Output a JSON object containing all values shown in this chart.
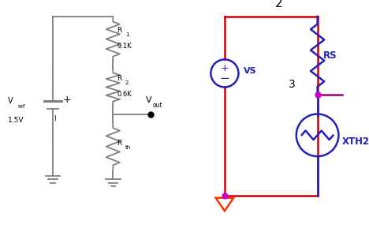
{
  "bg_color": "#ffffff",
  "left_circuit": {
    "wire_color": "#808080",
    "resistor_color": "#808080",
    "ground_color": "#808080",
    "dot_color": "#000000",
    "label_color": "#000000",
    "R1_label1": "R",
    "R1_label2": "1",
    "R1_val": "9.1K",
    "R2_label1": "R",
    "R2_label2": "2",
    "R2_val": "0.6K",
    "Rth_label1": "R",
    "Rth_label2": "th",
    "Vref_label1": "V",
    "Vref_label2": "ref",
    "Vref_val": "1.5V",
    "Vout_label1": "V",
    "Vout_label2": "out",
    "plus_label": "+",
    "I_label": "I"
  },
  "right_circuit": {
    "wire_color": "#cc0000",
    "resistor_color": "#2222bb",
    "label_color": "#2222bb",
    "node_color": "#cc00cc",
    "ground_color": "#ff3300",
    "node2_label": "2",
    "node3_label": "3",
    "VS_label": "VS",
    "RS_label": "RS",
    "XTH2_label": "XTH2"
  }
}
